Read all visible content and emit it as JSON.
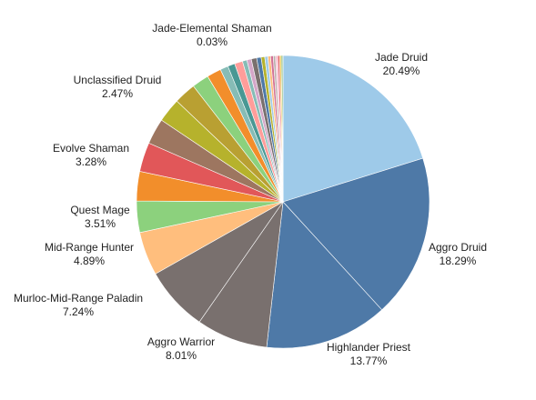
{
  "chart_data": {
    "type": "pie",
    "title": "",
    "start_angle_deg": 0,
    "direction": "clockwise",
    "slices": [
      {
        "label": "Jade Druid",
        "value": 20.49,
        "value_text": "20.49%",
        "color": "#9ecae9",
        "labeled": true
      },
      {
        "label": "Aggro Druid",
        "value": 18.29,
        "value_text": "18.29%",
        "color": "#4e79a7",
        "labeled": true
      },
      {
        "label": "Highlander Priest",
        "value": 13.77,
        "value_text": "13.77%",
        "color": "#4e79a7",
        "labeled": true
      },
      {
        "label": "Aggro Warrior",
        "value": 8.01,
        "value_text": "8.01%",
        "color": "#79706e",
        "labeled": true
      },
      {
        "label": "Murloc-Mid-Range Paladin",
        "value": 7.24,
        "value_text": "7.24%",
        "color": "#79706e",
        "labeled": true
      },
      {
        "label": "Mid-Range Hunter",
        "value": 4.89,
        "value_text": "4.89%",
        "color": "#ffbe7d",
        "labeled": true
      },
      {
        "label": "Quest Mage",
        "value": 3.51,
        "value_text": "3.51%",
        "color": "#8cd17d",
        "labeled": true
      },
      {
        "label": "",
        "value": 3.3,
        "value_text": "",
        "color": "#f28e2b",
        "labeled": false
      },
      {
        "label": "Evolve Shaman",
        "value": 3.28,
        "value_text": "3.28%",
        "color": "#e15759",
        "labeled": true
      },
      {
        "label": "",
        "value": 2.9,
        "value_text": "",
        "color": "#9d7660",
        "labeled": false
      },
      {
        "label": "",
        "value": 2.7,
        "value_text": "",
        "color": "#b6b22c",
        "labeled": false
      },
      {
        "label": "Unclassified Druid",
        "value": 2.47,
        "value_text": "2.47%",
        "color": "#b9a032",
        "labeled": true
      },
      {
        "label": "",
        "value": 1.9,
        "value_text": "",
        "color": "#8cd17d",
        "labeled": false
      },
      {
        "label": "",
        "value": 1.6,
        "value_text": "",
        "color": "#f28e2b",
        "labeled": false
      },
      {
        "label": "",
        "value": 0.9,
        "value_text": "",
        "color": "#86bcb6",
        "labeled": false
      },
      {
        "label": "",
        "value": 0.8,
        "value_text": "",
        "color": "#499894",
        "labeled": false
      },
      {
        "label": "",
        "value": 0.9,
        "value_text": "",
        "color": "#ff9d9a",
        "labeled": false
      },
      {
        "label": "",
        "value": 0.5,
        "value_text": "",
        "color": "#86bcb6",
        "labeled": false
      },
      {
        "label": "",
        "value": 0.5,
        "value_text": "",
        "color": "#d4a6c8",
        "labeled": false
      },
      {
        "label": "",
        "value": 0.6,
        "value_text": "",
        "color": "#79706e",
        "labeled": false
      },
      {
        "label": "",
        "value": 0.5,
        "value_text": "",
        "color": "#4e79a7",
        "labeled": false
      },
      {
        "label": "",
        "value": 0.4,
        "value_text": "",
        "color": "#b6b22c",
        "labeled": false
      },
      {
        "label": "",
        "value": 0.35,
        "value_text": "",
        "color": "#a0cbe8",
        "labeled": false
      },
      {
        "label": "",
        "value": 0.3,
        "value_text": "",
        "color": "#ffbe7d",
        "labeled": false
      },
      {
        "label": "",
        "value": 0.3,
        "value_text": "",
        "color": "#d37295",
        "labeled": false
      },
      {
        "label": "",
        "value": 0.25,
        "value_text": "",
        "color": "#bab0ac",
        "labeled": false
      },
      {
        "label": "",
        "value": 0.25,
        "value_text": "",
        "color": "#fabfd2",
        "labeled": false
      },
      {
        "label": "",
        "value": 0.2,
        "value_text": "",
        "color": "#e15759",
        "labeled": false
      },
      {
        "label": "",
        "value": 0.2,
        "value_text": "",
        "color": "#f1ce63",
        "labeled": false
      },
      {
        "label": "",
        "value": 0.15,
        "value_text": "",
        "color": "#59a14f",
        "labeled": false
      },
      {
        "label": "Jade-Elemental Shaman",
        "value": 0.03,
        "value_text": "0.03%",
        "color": "#59a14f",
        "labeled": true
      }
    ]
  }
}
